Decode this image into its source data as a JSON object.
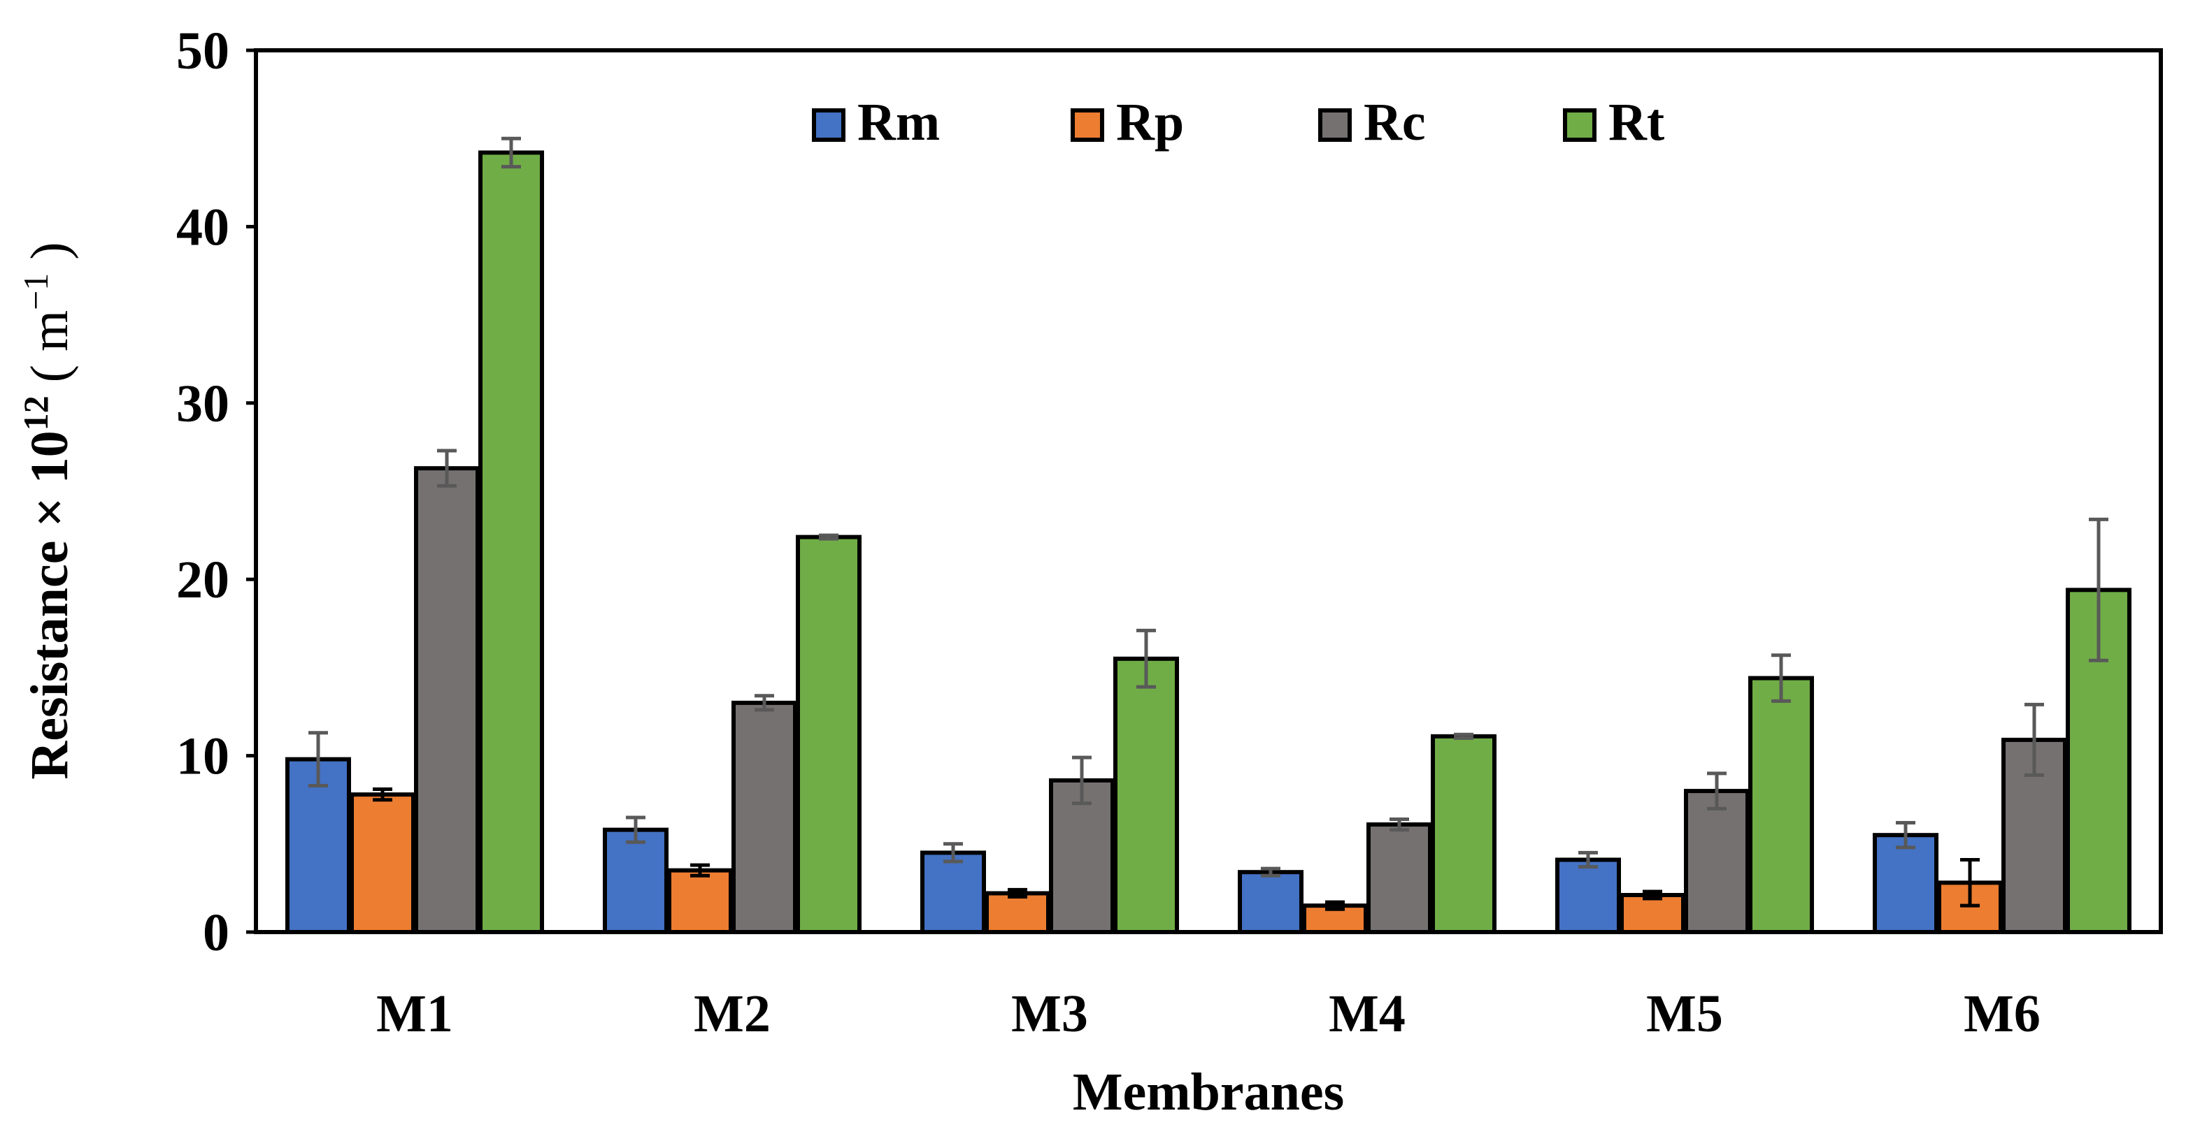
{
  "chart_data": {
    "type": "bar",
    "title": "",
    "xlabel": "Membranes",
    "ylabel": {
      "base": "Resistance × 10",
      "sup": "12",
      "unit_open": " ( m",
      "unit_sup": "−1",
      "unit_close": " )"
    },
    "ylim": [
      0,
      50
    ],
    "yticks": [
      0,
      10,
      20,
      30,
      40,
      50
    ],
    "grid": false,
    "legend_position": "top-center",
    "categories": [
      "M1",
      "M2",
      "M3",
      "M4",
      "M5",
      "M6"
    ],
    "series": [
      {
        "name": "Rm",
        "color": "#4472C4",
        "values": [
          9.8,
          5.8,
          4.5,
          3.4,
          4.1,
          5.5
        ],
        "errors": [
          1.5,
          0.7,
          0.5,
          0.2,
          0.4,
          0.7
        ]
      },
      {
        "name": "Rp",
        "color": "#ED7D31",
        "values": [
          7.8,
          3.5,
          2.2,
          1.5,
          2.1,
          2.8
        ],
        "errors": [
          0.3,
          0.3,
          0.2,
          0.2,
          0.2,
          1.3
        ]
      },
      {
        "name": "Rc",
        "color": "#767171",
        "values": [
          26.3,
          13.0,
          8.6,
          6.1,
          8.0,
          10.9
        ],
        "errors": [
          1.0,
          0.4,
          1.3,
          0.3,
          1.0,
          2.0
        ]
      },
      {
        "name": "Rt",
        "color": "#70AD47",
        "values": [
          44.2,
          22.4,
          15.5,
          11.1,
          14.4,
          19.4
        ],
        "errors": [
          0.8,
          0.1,
          1.6,
          0.1,
          1.3,
          4.0
        ]
      }
    ]
  }
}
